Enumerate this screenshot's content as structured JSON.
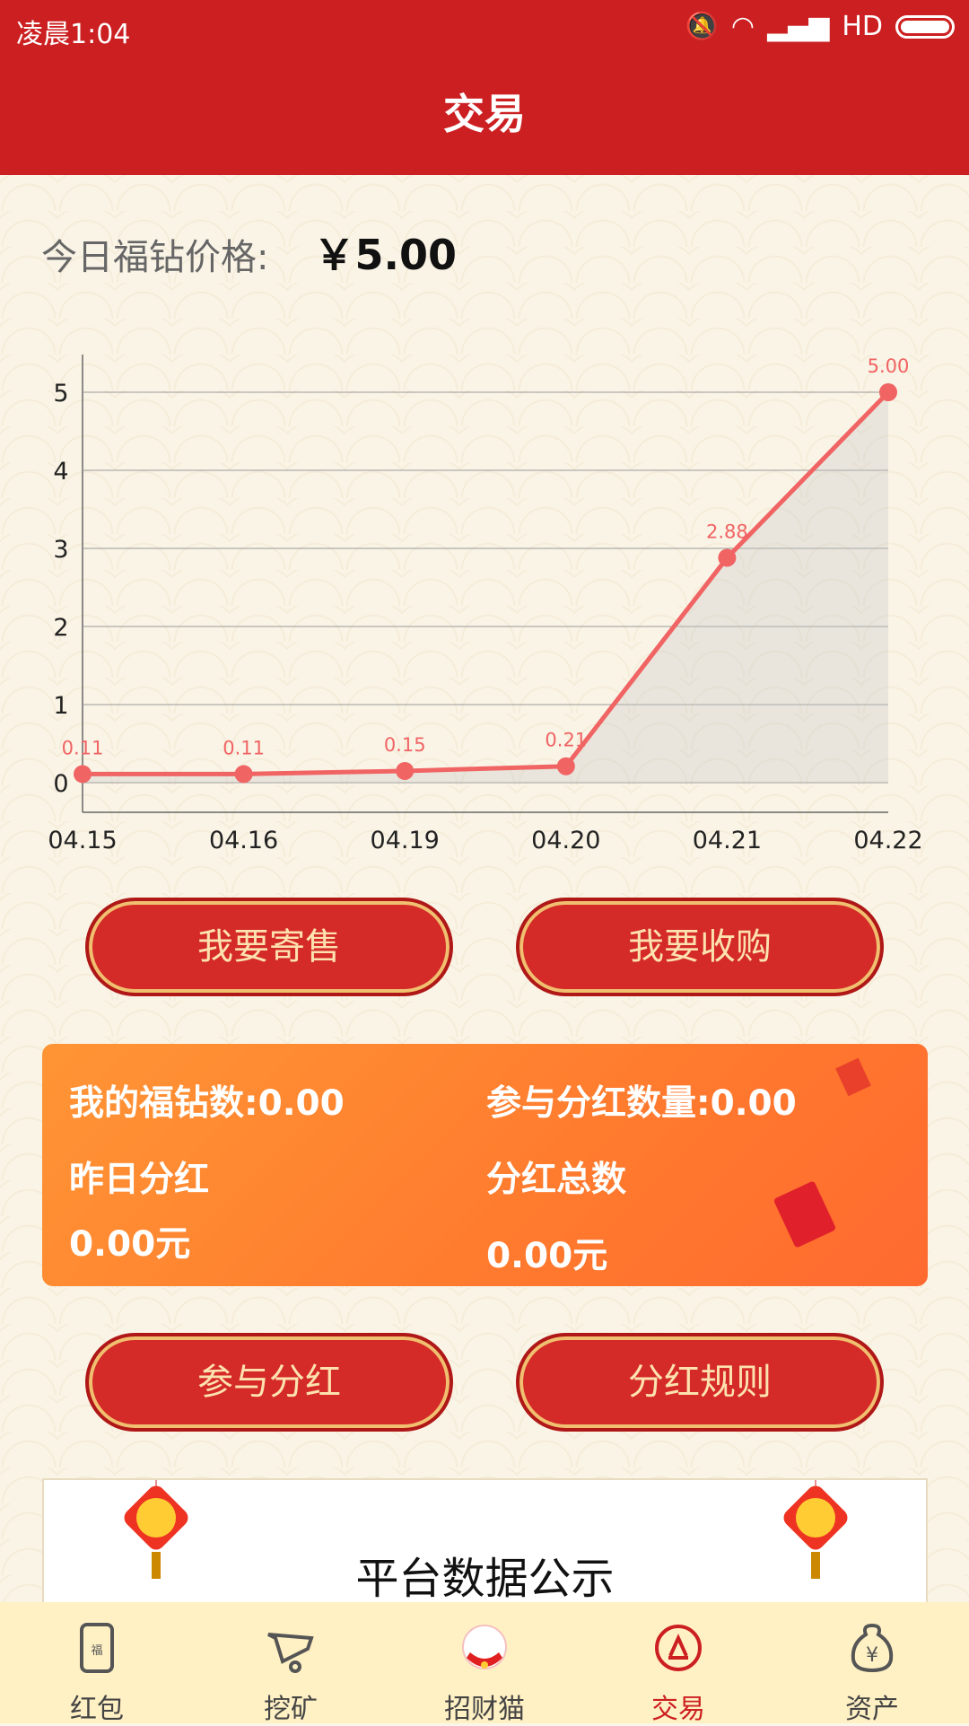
{
  "status": {
    "time": "凌晨1:04",
    "network": "HD"
  },
  "header": {
    "title": "交易"
  },
  "price": {
    "label": "今日福钻价格:",
    "value": "￥5.00"
  },
  "chart_data": {
    "type": "line",
    "categories": [
      "04.15",
      "04.16",
      "04.19",
      "04.20",
      "04.21",
      "04.22"
    ],
    "values": [
      0.11,
      0.11,
      0.15,
      0.21,
      2.88,
      5.0
    ],
    "data_labels": [
      "0.11",
      "0.11",
      "0.15",
      "0.21",
      "2.88",
      "5.00"
    ],
    "yticks": [
      "0",
      "1",
      "2",
      "3",
      "4",
      "5"
    ],
    "ylim": [
      0,
      5.5
    ],
    "grid": true,
    "color": "#f06464"
  },
  "buttons": {
    "sell": "我要寄售",
    "buy": "我要收购",
    "join": "参与分红",
    "rules": "分红规则"
  },
  "card": {
    "my_diamonds": "我的福钻数:0.00",
    "dividend_qty": "参与分红数量:0.00",
    "yesterday_label": "昨日分红",
    "yesterday_value": "0.00元",
    "total_label": "分红总数",
    "total_value": "0.00元"
  },
  "panel": {
    "title": "平台数据公示"
  },
  "nav": [
    {
      "label": "红包",
      "icon": "red-envelope-icon"
    },
    {
      "label": "挖矿",
      "icon": "mining-cart-icon"
    },
    {
      "label": "招财猫",
      "icon": "lucky-cat-icon"
    },
    {
      "label": "交易",
      "icon": "trade-icon",
      "active": true
    },
    {
      "label": "资产",
      "icon": "money-bag-icon"
    }
  ],
  "colors": {
    "primary": "#cc1f21",
    "card": "#ff8a30",
    "nav_bg": "#fff1c4"
  }
}
